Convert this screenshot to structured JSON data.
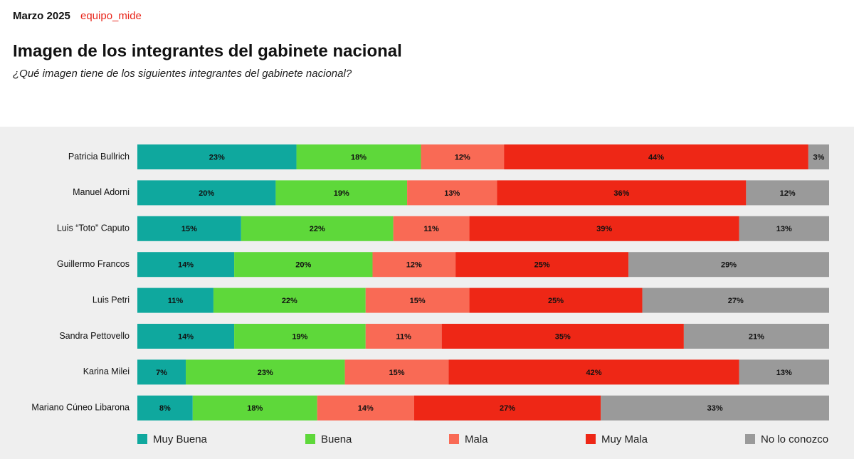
{
  "header": {
    "date": "Marzo 2025",
    "brand": "equipo_mide"
  },
  "chart_data": {
    "type": "stacked_bar_horizontal",
    "title": "Imagen de los integrantes del gabinete nacional",
    "subtitle": "¿Qué imagen tiene de los siguientes integrantes del gabinete nacional?",
    "categories": [
      "Patricia Bullrich",
      "Manuel Adorni",
      "Luis “Toto” Caputo",
      "Guillermo Francos",
      "Luis Petri",
      "Sandra Pettovello",
      "Karina Milei",
      "Mariano Cúneo Libarona"
    ],
    "series": [
      {
        "name": "Muy Buena",
        "color": "#0fa89e",
        "values": [
          23,
          20,
          15,
          14,
          11,
          14,
          7,
          8
        ],
        "value_labels": [
          "23%",
          "20%",
          "15%",
          "14%",
          "11%",
          "14%",
          "7%",
          "8%"
        ]
      },
      {
        "name": "Buena",
        "color": "#5ed83a",
        "values": [
          18,
          19,
          22,
          20,
          22,
          19,
          23,
          18
        ],
        "value_labels": [
          "18%",
          "19%",
          "22%",
          "20%",
          "22%",
          "19%",
          "23%",
          "18%"
        ]
      },
      {
        "name": "Mala",
        "color": "#f96a55",
        "values": [
          12,
          13,
          11,
          12,
          15,
          11,
          15,
          14
        ],
        "value_labels": [
          "12%",
          "13%",
          "11%",
          "12%",
          "15%",
          "11%",
          "15%",
          "14%"
        ]
      },
      {
        "name": "Muy Mala",
        "color": "#ee2716",
        "values": [
          44,
          36,
          39,
          25,
          25,
          35,
          42,
          27
        ],
        "value_labels": [
          "44%",
          "36%",
          "39%",
          "25%",
          "25%",
          "35%",
          "42%",
          "27%"
        ]
      },
      {
        "name": "No lo conozco",
        "color": "#9a9a9a",
        "values": [
          3,
          12,
          13,
          29,
          27,
          21,
          13,
          33
        ],
        "value_labels": [
          "3%",
          "12%",
          "13%",
          "29%",
          "27%",
          "21%",
          "13%",
          "33%"
        ]
      }
    ]
  }
}
